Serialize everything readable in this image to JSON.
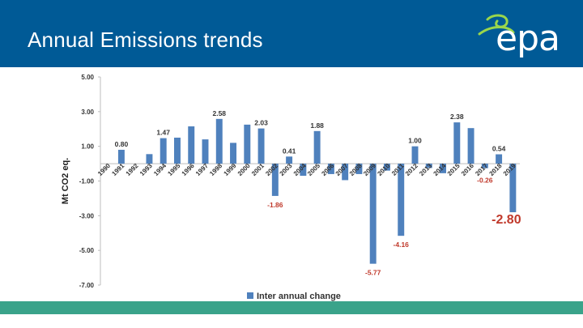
{
  "header": {
    "title": "Annual Emissions trends",
    "logo_text": "epa",
    "logo_icon": "epa-swirl-icon"
  },
  "colors": {
    "header_bg": "#005a96",
    "footer_bar": "#3aa38a",
    "bar": "#4f81bd",
    "negative_label": "#c0392b"
  },
  "chart_data": {
    "type": "bar",
    "title": "",
    "xlabel": "",
    "ylabel": "Mt CO2 eq.",
    "ylim": [
      -7,
      5
    ],
    "yticks": [
      "5.00",
      "3.00",
      "1.00",
      "-1.00",
      "-3.00",
      "-5.00",
      "-7.00"
    ],
    "ytick_values": [
      5,
      3,
      1,
      -1,
      -3,
      -5,
      -7
    ],
    "grid": false,
    "legend": {
      "position": "bottom-center",
      "entries": [
        "Inter annual change"
      ]
    },
    "categories": [
      "1990",
      "1991",
      "1992",
      "1993",
      "1994",
      "1995",
      "1996",
      "1997",
      "1998",
      "1999",
      "2000",
      "2001",
      "2002",
      "2003",
      "2004",
      "2005",
      "2006",
      "2007",
      "2008",
      "2009",
      "2010",
      "2011",
      "2012",
      "2013",
      "2014",
      "2015",
      "2016",
      "2017",
      "2018",
      "2019"
    ],
    "series": [
      {
        "name": "Inter annual change",
        "values": [
          0,
          0.8,
          0,
          0.55,
          1.47,
          1.5,
          2.15,
          1.4,
          2.58,
          1.2,
          2.25,
          2.03,
          -1.86,
          0.41,
          -0.7,
          1.88,
          -0.6,
          -0.95,
          -0.6,
          -5.77,
          -0.4,
          -4.16,
          1.0,
          -0.25,
          -0.55,
          2.38,
          2.05,
          -0.26,
          0.54,
          -2.8
        ]
      }
    ],
    "data_labels": [
      {
        "category": "1991",
        "text": "0.80",
        "color": "dark"
      },
      {
        "category": "1994",
        "text": "1.47",
        "color": "dark"
      },
      {
        "category": "1998",
        "text": "2.58",
        "color": "dark"
      },
      {
        "category": "2001",
        "text": "2.03",
        "color": "dark"
      },
      {
        "category": "2002",
        "text": "-1.86",
        "color": "red"
      },
      {
        "category": "2003",
        "text": "0.41",
        "color": "dark"
      },
      {
        "category": "2005",
        "text": "1.88",
        "color": "dark"
      },
      {
        "category": "2009",
        "text": "-5.77",
        "color": "red"
      },
      {
        "category": "2011",
        "text": "-4.16",
        "color": "red"
      },
      {
        "category": "2012",
        "text": "1.00",
        "color": "dark"
      },
      {
        "category": "2015",
        "text": "2.38",
        "color": "dark"
      },
      {
        "category": "2017",
        "text": "-0.26",
        "color": "red"
      },
      {
        "category": "2018",
        "text": "0.54",
        "color": "dark"
      },
      {
        "category": "2019",
        "text": "-2.80",
        "color": "red",
        "emphasis": true
      }
    ]
  }
}
